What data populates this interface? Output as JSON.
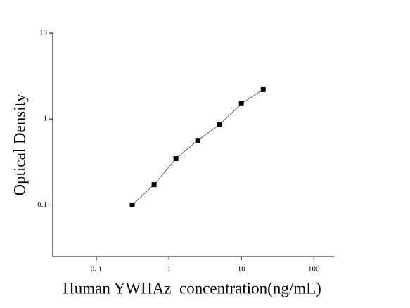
{
  "chart_data": {
    "type": "scatter",
    "xlabel": "Human YWHAz  concentration(ng/mL)",
    "ylabel": "Optical Density",
    "x": [
      0.3125,
      0.625,
      1.25,
      2.5,
      5,
      10,
      20
    ],
    "values": [
      0.1,
      0.172,
      0.346,
      0.563,
      0.86,
      1.51,
      2.2
    ],
    "color": "#000000",
    "line": true,
    "xscale": "log",
    "yscale": "log",
    "xlim": [
      0.025,
      190
    ],
    "ylim": [
      0.025,
      10
    ],
    "xticks": [
      {
        "value": 0.1,
        "label": "0. 1"
      },
      1,
      10,
      100
    ],
    "yticks": [
      0.1,
      1,
      10
    ]
  }
}
